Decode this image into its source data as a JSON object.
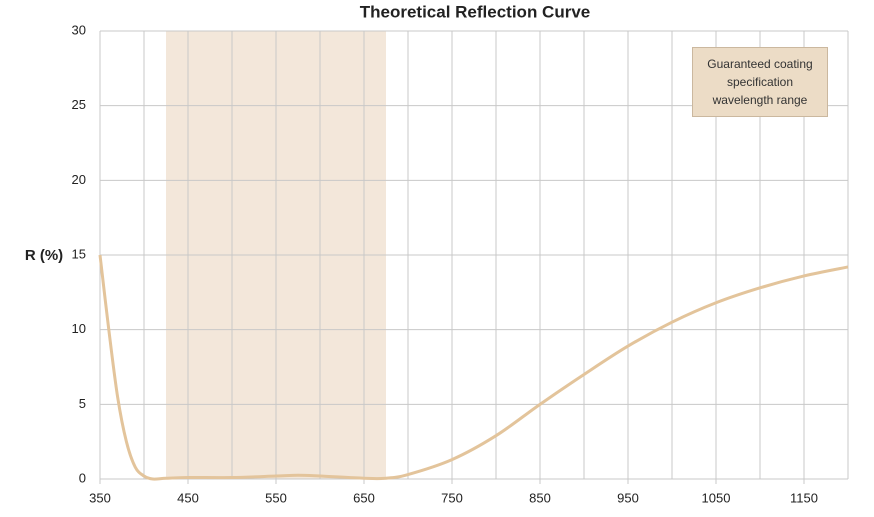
{
  "chart_data": {
    "type": "line",
    "title": "Theoretical Reflection Curve",
    "y_label": "R (%)",
    "x": [
      350,
      360,
      370,
      380,
      390,
      400,
      410,
      425,
      450,
      500,
      550,
      575,
      600,
      650,
      675,
      700,
      750,
      800,
      850,
      900,
      950,
      1000,
      1050,
      1100,
      1150,
      1200
    ],
    "series": [
      {
        "name": "R",
        "color": "#e3c49b",
        "values": [
          15,
          10,
          5.5,
          2.5,
          0.8,
          0.2,
          0,
          0.05,
          0.1,
          0.1,
          0.2,
          0.25,
          0.2,
          0.05,
          0.05,
          0.3,
          1.3,
          2.9,
          5.0,
          7.0,
          8.9,
          10.5,
          11.8,
          12.8,
          13.6,
          14.2
        ]
      }
    ],
    "xlim": [
      350,
      1200
    ],
    "xticks": [
      350,
      450,
      550,
      650,
      750,
      850,
      950,
      1050,
      1150
    ],
    "x_grid": [
      350,
      400,
      450,
      500,
      550,
      600,
      650,
      700,
      750,
      800,
      850,
      900,
      950,
      1000,
      1050,
      1100,
      1150,
      1200
    ],
    "ylim": [
      0,
      30
    ],
    "yticks": [
      0,
      5,
      10,
      15,
      20,
      25,
      30
    ],
    "grid": true,
    "shaded_range": {
      "range": [
        425,
        675
      ],
      "color": "#f3e7da",
      "annotation": "Guaranteed coating specification wavelength range"
    }
  }
}
